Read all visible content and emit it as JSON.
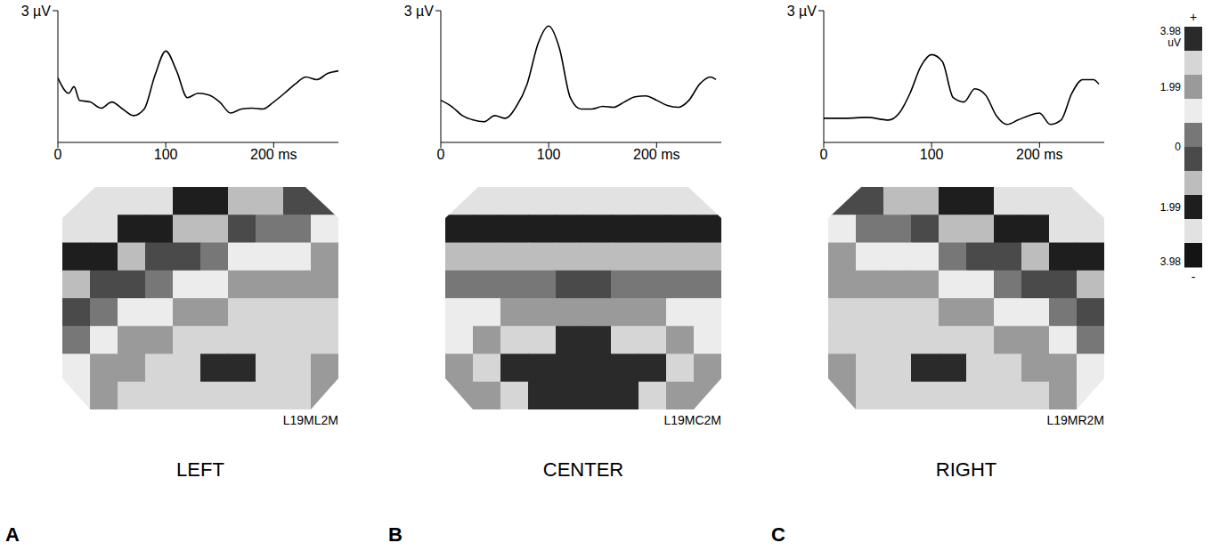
{
  "chart_data": [
    {
      "type": "line",
      "panel": "A",
      "title": "LEFT",
      "color": "#000000",
      "x": [
        0,
        10,
        15,
        20,
        30,
        40,
        50,
        60,
        70,
        80,
        90,
        100,
        110,
        120,
        130,
        140,
        150,
        160,
        170,
        180,
        190,
        200,
        210,
        220,
        230,
        240,
        250,
        260
      ],
      "values": [
        1.47,
        1.12,
        1.27,
        0.96,
        0.92,
        0.78,
        0.92,
        0.76,
        0.61,
        0.76,
        1.53,
        2.08,
        1.63,
        1.02,
        1.12,
        1.08,
        0.92,
        0.67,
        0.76,
        0.78,
        0.76,
        0.92,
        1.12,
        1.33,
        1.49,
        1.43,
        1.57,
        1.63
      ],
      "xlim": [
        0,
        260
      ],
      "ylim": [
        0,
        3
      ],
      "xticks": [
        0,
        100,
        {
          "value": 200,
          "label": "200 ms"
        }
      ],
      "yticks": [
        {
          "value": 3,
          "label": "3 µV"
        }
      ],
      "map": {
        "label": "L19ML2M",
        "cells": [
          [
            -3.0,
            -3.0,
            -2.8,
            -2.5,
            -2.2,
            -1.8,
            -1.4,
            -1.0,
            -0.6,
            -0.2
          ],
          [
            -2.6,
            -2.4,
            -2.0,
            -1.6,
            -1.2,
            -0.8,
            -0.3,
            0.2,
            0.6,
            1.0
          ],
          [
            -2.0,
            -1.6,
            -1.2,
            -0.7,
            -0.2,
            0.3,
            0.8,
            1.2,
            1.5,
            1.8
          ],
          [
            -1.2,
            -0.7,
            -0.2,
            0.4,
            0.9,
            1.4,
            1.8,
            2.1,
            2.2,
            2.2
          ],
          [
            -0.4,
            0.2,
            0.8,
            1.4,
            1.9,
            2.3,
            2.6,
            2.7,
            2.6,
            2.4
          ],
          [
            0.4,
            1.0,
            1.6,
            2.2,
            2.7,
            3.0,
            3.1,
            3.0,
            2.8,
            2.4
          ],
          [
            1.0,
            1.6,
            2.2,
            2.8,
            3.1,
            3.2,
            3.2,
            3.0,
            2.7,
            2.2
          ],
          [
            1.2,
            1.8,
            2.4,
            2.8,
            3.0,
            3.0,
            2.9,
            2.7,
            2.4,
            2.0
          ]
        ]
      }
    },
    {
      "type": "line",
      "panel": "B",
      "title": "CENTER",
      "color": "#000000",
      "x": [
        0,
        10,
        20,
        30,
        40,
        50,
        60,
        70,
        80,
        90,
        100,
        110,
        120,
        130,
        140,
        150,
        160,
        170,
        180,
        190,
        200,
        210,
        220,
        230,
        240,
        250,
        255
      ],
      "values": [
        0.96,
        0.82,
        0.61,
        0.51,
        0.47,
        0.61,
        0.55,
        0.82,
        1.33,
        2.24,
        2.65,
        2.14,
        1.02,
        0.76,
        0.76,
        0.82,
        0.8,
        0.92,
        1.04,
        1.06,
        0.96,
        0.84,
        0.8,
        0.96,
        1.33,
        1.49,
        1.43
      ],
      "xlim": [
        0,
        260
      ],
      "ylim": [
        0,
        3
      ],
      "xticks": [
        0,
        100,
        {
          "value": 200,
          "label": "200 ms"
        }
      ],
      "yticks": [
        {
          "value": 3,
          "label": "3 µV"
        }
      ],
      "map": {
        "label": "L19MC2M",
        "cells": [
          [
            -2.5,
            -2.8,
            -3.0,
            -3.0,
            -3.0,
            -3.0,
            -3.0,
            -3.0,
            -2.8,
            -2.5
          ],
          [
            -1.8,
            -2.0,
            -2.2,
            -2.3,
            -2.3,
            -2.3,
            -2.3,
            -2.2,
            -2.0,
            -1.8
          ],
          [
            -0.8,
            -1.0,
            -1.2,
            -1.3,
            -1.3,
            -1.3,
            -1.3,
            -1.2,
            -1.0,
            -0.8
          ],
          [
            0.2,
            0.3,
            0.2,
            0.1,
            0.0,
            0.0,
            0.1,
            0.2,
            0.3,
            0.2
          ],
          [
            1.0,
            1.3,
            1.6,
            1.8,
            1.8,
            1.8,
            1.8,
            1.6,
            1.3,
            1.0
          ],
          [
            1.5,
            2.0,
            2.6,
            3.0,
            3.2,
            3.2,
            3.0,
            2.6,
            2.0,
            1.5
          ],
          [
            1.8,
            2.4,
            3.2,
            3.9,
            4.0,
            4.0,
            3.9,
            3.2,
            2.4,
            1.8
          ],
          [
            1.6,
            2.2,
            2.9,
            3.4,
            3.6,
            3.6,
            3.4,
            2.9,
            2.2,
            1.6
          ]
        ]
      }
    },
    {
      "type": "line",
      "panel": "C",
      "title": "RIGHT",
      "color": "#000000",
      "x": [
        0,
        20,
        40,
        60,
        70,
        80,
        90,
        100,
        110,
        120,
        130,
        140,
        150,
        160,
        170,
        180,
        190,
        200,
        210,
        220,
        230,
        240,
        250,
        255
      ],
      "values": [
        0.55,
        0.55,
        0.57,
        0.51,
        0.67,
        1.12,
        1.73,
        2.0,
        1.84,
        1.02,
        0.92,
        1.22,
        1.08,
        0.61,
        0.41,
        0.51,
        0.61,
        0.67,
        0.41,
        0.51,
        1.12,
        1.43,
        1.43,
        1.33
      ],
      "xlim": [
        0,
        260
      ],
      "ylim": [
        0,
        3
      ],
      "xticks": [
        0,
        100,
        {
          "value": 200,
          "label": "200 ms"
        }
      ],
      "yticks": [
        {
          "value": 3,
          "label": "3 µV"
        }
      ],
      "map": {
        "label": "L19MR2M",
        "cells": [
          [
            -0.2,
            -0.6,
            -1.0,
            -1.4,
            -1.8,
            -2.2,
            -2.5,
            -2.8,
            -3.0,
            -3.0
          ],
          [
            1.0,
            0.6,
            0.2,
            -0.3,
            -0.8,
            -1.2,
            -1.6,
            -2.0,
            -2.4,
            -2.6
          ],
          [
            1.8,
            1.5,
            1.2,
            0.8,
            0.3,
            -0.2,
            -0.7,
            -1.2,
            -1.6,
            -2.0
          ],
          [
            2.2,
            2.2,
            2.1,
            1.8,
            1.4,
            0.9,
            0.4,
            -0.2,
            -0.7,
            -1.2
          ],
          [
            2.4,
            2.6,
            2.7,
            2.6,
            2.3,
            1.9,
            1.4,
            0.8,
            0.2,
            -0.4
          ],
          [
            2.4,
            2.8,
            3.0,
            3.1,
            3.0,
            2.7,
            2.2,
            1.6,
            1.0,
            0.4
          ],
          [
            2.2,
            2.7,
            3.0,
            3.2,
            3.2,
            3.1,
            2.8,
            2.2,
            1.6,
            1.0
          ],
          [
            2.0,
            2.4,
            2.7,
            2.9,
            3.0,
            3.0,
            2.8,
            2.4,
            1.8,
            1.2
          ]
        ]
      }
    }
  ],
  "colorbar": {
    "range": [
      -3.98,
      3.98
    ],
    "ticks": [
      {
        "value": 3.98,
        "label": "3.98"
      },
      {
        "value": 1.99,
        "label": "1.99"
      },
      0,
      {
        "value": -1.99,
        "label": "1.99"
      },
      {
        "value": -3.98,
        "label": "3.98"
      }
    ],
    "unit": "uV",
    "top_label": "+",
    "bottom_label": "-"
  }
}
